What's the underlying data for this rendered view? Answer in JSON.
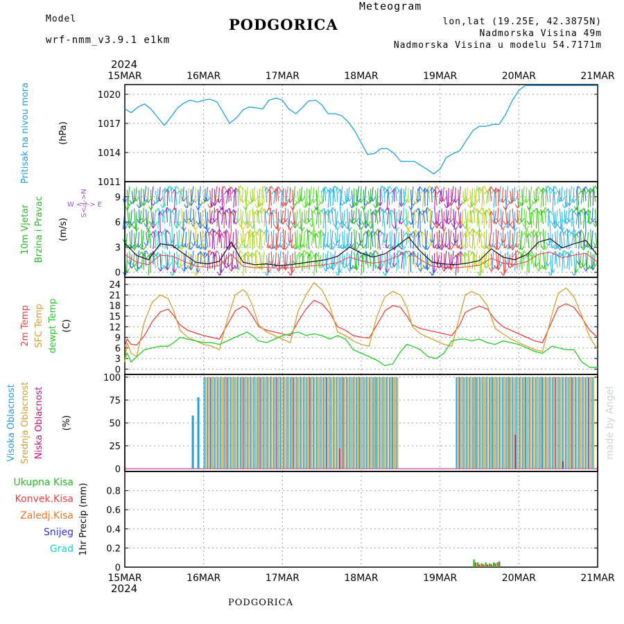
{
  "header": {
    "model_label": "Model",
    "model_name": "wrf-nmm_v3.9.1 e1km",
    "title": "PODGORICA",
    "chart_kind": "Meteogram",
    "coords": "lon,lat (19.25E, 42.3875N)",
    "elevation": "Nadmorska Visina 49m",
    "model_elevation": "Nadmorska Visina u modelu 54.7171m"
  },
  "footer": {
    "location": "PODGORICA",
    "credit": "made by Angel"
  },
  "colors": {
    "pressure": "#1ba0e0",
    "wind_green": "#22bb22",
    "temp": "#e84040",
    "sfc_temp": "#d4a030",
    "dewpt": "#22cc22",
    "cloud_high": "#1ba0e0",
    "cloud_mid": "#d4a030",
    "cloud_low": "#c01080",
    "total_precip": "#22bb22",
    "conv_precip": "#e84040",
    "frozen_precip": "#ee7722",
    "snow": "#3333cc",
    "hail": "#22cccc",
    "model_text": "#a050d0",
    "header_gold": "#d4a030"
  },
  "chart_data": [
    {
      "type": "line",
      "panel": "pressure",
      "ylabel_left": "Pritisak na nivou mora",
      "ylabel_unit": "(hPa)",
      "ylim": [
        1011,
        1021
      ],
      "yticks": [
        1011,
        1014,
        1017,
        1020
      ],
      "year_label": "2024",
      "x_ticks": [
        "15MAR",
        "16MAR",
        "17MAR",
        "18MAR",
        "19MAR",
        "20MAR",
        "21MAR"
      ],
      "grid": true,
      "series": [
        {
          "x": [
            0,
            0.08,
            0.17,
            0.25,
            0.33,
            0.42,
            0.5,
            0.58,
            0.67,
            0.75,
            0.83,
            0.92,
            1.0,
            1.08,
            1.17,
            1.25,
            1.33,
            1.42,
            1.5,
            1.58,
            1.67,
            1.75,
            1.83,
            1.92,
            2.0,
            2.08,
            2.17,
            2.25,
            2.33,
            2.42,
            2.5,
            2.58,
            2.67,
            2.75,
            2.83,
            2.92,
            3.0,
            3.08,
            3.17,
            3.25,
            3.33,
            3.42,
            3.5,
            3.58,
            3.67,
            3.75,
            3.83,
            3.92,
            4.0,
            4.08,
            4.17,
            4.25,
            4.33,
            4.42,
            4.5,
            4.58,
            4.67,
            4.75,
            4.83,
            4.92,
            5.0,
            5.08,
            5.17,
            5.25,
            5.33,
            5.42,
            5.5,
            5.58,
            5.67,
            5.75,
            5.83,
            5.92,
            6.0
          ],
          "values": [
            1018.5,
            1018.1,
            1018.7,
            1019.0,
            1018.5,
            1017.6,
            1016.8,
            1017.6,
            1018.6,
            1019.1,
            1019.4,
            1019.2,
            1019.4,
            1019.5,
            1019.2,
            1018.1,
            1017.0,
            1017.6,
            1018.4,
            1018.7,
            1018.6,
            1018.5,
            1019.4,
            1019.6,
            1019.4,
            1018.5,
            1018.0,
            1018.6,
            1019.3,
            1019.4,
            1018.9,
            1018.0,
            1018.0,
            1017.8,
            1017.2,
            1016.2,
            1015.0,
            1013.8,
            1013.9,
            1014.4,
            1014.4,
            1013.9,
            1013.1,
            1013.1,
            1013.1,
            1012.7,
            1012.3,
            1011.8,
            1012.3,
            1013.5,
            1013.9,
            1014.2,
            1015.2,
            1016.3,
            1016.7,
            1016.7,
            1016.9,
            1016.9,
            1017.9,
            1019.4,
            1020.4,
            1020.9,
            1020.9,
            1020.9,
            1020.9,
            1020.9,
            1020.9,
            1020.9,
            1020.9,
            1020.9,
            1020.9,
            1020.9,
            1020.9
          ]
        }
      ]
    },
    {
      "type": "line",
      "panel": "wind",
      "ylabel_left_1": "10m Vjetar",
      "ylabel_left_2": "Brzina i Pravac",
      "ylabel_unit": "(m/s)",
      "compass": "W <-|-> E",
      "compass_vertical": "S<-|->N",
      "ylim": [
        -0.6,
        10.8
      ],
      "yticks": [
        0,
        3,
        6,
        9
      ],
      "series": [
        {
          "name": "speed",
          "x": [
            0,
            0.15,
            0.3,
            0.45,
            0.6,
            0.75,
            0.9,
            1.05,
            1.2,
            1.35,
            1.5,
            1.65,
            1.8,
            1.95,
            2.1,
            2.25,
            2.4,
            2.55,
            2.7,
            2.85,
            3.0,
            3.15,
            3.3,
            3.45,
            3.6,
            3.75,
            3.9,
            4.05,
            4.2,
            4.35,
            4.5,
            4.65,
            4.8,
            4.95,
            5.1,
            5.25,
            5.4,
            5.55,
            5.7,
            5.85,
            6.0
          ],
          "values": [
            3.5,
            2.0,
            1.5,
            3.4,
            3.2,
            2.2,
            1.2,
            1.0,
            1.3,
            3.6,
            1.2,
            0.9,
            1.0,
            0.8,
            0.9,
            1.1,
            1.3,
            1.5,
            1.9,
            3.0,
            2.3,
            1.8,
            2.2,
            3.1,
            4.2,
            2.5,
            1.2,
            1.0,
            0.9,
            1.1,
            1.4,
            2.8,
            1.8,
            1.5,
            2.1,
            3.6,
            4.0,
            2.9,
            3.4,
            3.8,
            2.0
          ]
        }
      ]
    },
    {
      "type": "line",
      "panel": "temperature",
      "ylabel_1": "2m Temp",
      "ylabel_2": "SFC Temp",
      "ylabel_3": "dewpt Temp",
      "ylabel_unit": "(C)",
      "ylim": [
        -1.5,
        26
      ],
      "yticks": [
        0,
        3,
        6,
        9,
        12,
        15,
        18,
        21,
        24
      ],
      "x": [
        0,
        0.03,
        0.08,
        0.15,
        0.25,
        0.35,
        0.45,
        0.55,
        0.62,
        0.7,
        0.8,
        0.9,
        1.0,
        1.1,
        1.2,
        1.3,
        1.4,
        1.5,
        1.55,
        1.62,
        1.7,
        1.8,
        1.9,
        2.0,
        2.1,
        2.2,
        2.3,
        2.4,
        2.5,
        2.6,
        2.7,
        2.8,
        2.9,
        3.0,
        3.1,
        3.2,
        3.3,
        3.4,
        3.5,
        3.58,
        3.65,
        3.75,
        3.85,
        3.95,
        4.05,
        4.15,
        4.25,
        4.32,
        4.4,
        4.5,
        4.6,
        4.7,
        4.8,
        4.9,
        5.0,
        5.1,
        5.2,
        5.3,
        5.42,
        5.5,
        5.6,
        5.7,
        5.8,
        5.9,
        6.0
      ],
      "series": [
        {
          "name": "2m Temp",
          "values": [
            6.5,
            8.5,
            7.0,
            6.8,
            9.5,
            13.5,
            16.2,
            17.0,
            15.2,
            12.5,
            11.0,
            10.2,
            9.5,
            9.0,
            8.5,
            12.5,
            16.5,
            17.8,
            17.2,
            15.0,
            12.0,
            11.0,
            10.5,
            10.0,
            9.5,
            13.5,
            17.0,
            19.5,
            18.5,
            16.0,
            12.0,
            11.0,
            9.5,
            9.0,
            8.8,
            12.5,
            16.5,
            18.0,
            17.5,
            15.0,
            12.5,
            11.5,
            11.0,
            10.5,
            10.0,
            9.5,
            12.5,
            16.0,
            17.0,
            17.8,
            17.0,
            14.0,
            12.0,
            11.0,
            10.0,
            9.0,
            8.0,
            7.5,
            13.5,
            17.5,
            18.5,
            17.5,
            14.5,
            11.0,
            9.0
          ]
        },
        {
          "name": "SFC Temp",
          "values": [
            2.0,
            7.5,
            4.5,
            3.5,
            13.5,
            19.0,
            21.0,
            20.0,
            16.5,
            11.0,
            9.0,
            8.0,
            7.0,
            6.5,
            5.5,
            14.0,
            21.0,
            22.5,
            21.5,
            18.0,
            12.5,
            10.5,
            9.5,
            8.5,
            7.5,
            16.5,
            21.0,
            24.5,
            22.5,
            18.0,
            10.5,
            9.5,
            8.0,
            7.0,
            6.5,
            15.0,
            20.5,
            22.0,
            21.0,
            17.5,
            12.0,
            10.0,
            9.0,
            8.0,
            7.0,
            6.5,
            15.0,
            21.0,
            22.0,
            21.0,
            18.0,
            11.5,
            10.0,
            8.5,
            7.5,
            6.5,
            5.5,
            5.0,
            15.5,
            21.5,
            23.0,
            20.5,
            15.0,
            9.0,
            5.5
          ]
        },
        {
          "name": "dewpt Temp",
          "values": [
            3.0,
            4.5,
            2.0,
            3.5,
            5.5,
            6.0,
            6.5,
            6.5,
            7.5,
            9.0,
            8.5,
            8.0,
            7.5,
            7.5,
            7.0,
            8.0,
            9.0,
            10.0,
            10.5,
            9.5,
            8.0,
            7.5,
            8.5,
            9.5,
            10.0,
            10.5,
            9.5,
            10.0,
            9.5,
            8.5,
            9.5,
            8.5,
            5.5,
            4.5,
            3.5,
            2.5,
            1.0,
            1.5,
            5.0,
            7.0,
            6.5,
            5.5,
            3.5,
            3.0,
            4.5,
            8.0,
            8.5,
            8.5,
            8.0,
            8.5,
            7.5,
            7.0,
            8.0,
            7.5,
            7.0,
            6.0,
            5.0,
            4.5,
            6.5,
            6.0,
            5.5,
            5.5,
            2.0,
            0.5,
            0.5
          ]
        }
      ]
    },
    {
      "type": "bar",
      "panel": "cloud_cover",
      "ylabel_1": "Visoka Oblacnost",
      "ylabel_2": "Srednja Oblacnost",
      "ylabel_3": "Niska Oblacnost",
      "ylabel_unit": "(%)",
      "ylim": [
        -3,
        103
      ],
      "yticks": [
        0,
        25,
        50,
        75,
        100
      ],
      "groups": [
        {
          "start": 0.85,
          "end": 0.92,
          "high": [
            58,
            78
          ],
          "mid": [
            0,
            0
          ],
          "low": [
            0,
            0
          ]
        },
        {
          "start": 1.0,
          "end": 3.45,
          "high": 100,
          "mid": 100,
          "low": "mixed"
        },
        {
          "start": 4.2,
          "end": 5.95,
          "high": 100,
          "mid": 100,
          "low": "mixed"
        }
      ],
      "isolated_low": [
        {
          "x": 2.72,
          "value": 22
        },
        {
          "x": 5.55,
          "value": 8
        },
        {
          "x": 4.95,
          "value": 37
        }
      ]
    },
    {
      "type": "bar",
      "panel": "precipitation",
      "ylabel_unit": "1hr Precip (mm)",
      "legend": [
        "Ukupna Kisa",
        "Konvek.Kisa",
        "Zaledj.Kisa",
        "Snijeg",
        "Grad"
      ],
      "ylim": [
        0,
        1.0
      ],
      "yticks": [
        0,
        0.2,
        0.4,
        0.6,
        0.8
      ],
      "x": [
        4.42,
        4.47,
        4.52,
        4.57,
        4.62,
        4.67,
        4.72
      ],
      "series": [
        {
          "name": "Ukupna Kisa",
          "values": [
            0.08,
            0.05,
            0.04,
            0.05,
            0.04,
            0.05,
            0.05
          ]
        },
        {
          "name": "Konvek.Kisa",
          "values": [
            0.05,
            0.03,
            0.03,
            0.03,
            0.03,
            0.04,
            0.06
          ]
        }
      ]
    }
  ]
}
